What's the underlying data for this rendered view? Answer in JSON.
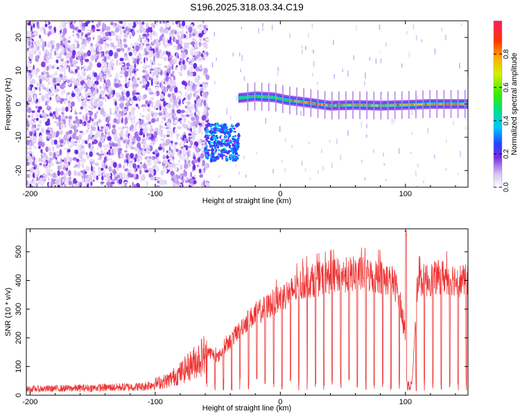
{
  "title": "S196.2025.318.03.34.C19",
  "chart_data": [
    {
      "type": "heatmap",
      "xlabel": "Height of straight line (km)",
      "ylabel": "Frequency (Hz)",
      "xlim": [
        -203,
        150
      ],
      "ylim": [
        -25,
        25
      ],
      "xticks": [
        -200,
        -100,
        0,
        100
      ],
      "yticks": [
        -20,
        -10,
        0,
        10,
        20
      ],
      "colorbar": {
        "label": "Normalized spectral amplitude",
        "range": [
          0,
          1
        ],
        "ticks": [
          0.0,
          0.2,
          0.4,
          0.6,
          0.8
        ]
      },
      "features": [
        {
          "name": "broadband noise",
          "x_range": [
            -203,
            -58
          ],
          "freq_range": [
            -25,
            25
          ],
          "amplitude": 0.15
        },
        {
          "name": "low-frequency burst",
          "x_range": [
            -60,
            -33
          ],
          "freq_range": [
            -17,
            -6
          ],
          "amplitude": 0.35
        },
        {
          "name": "signal trace",
          "points": [
            [
              -33,
              1.8
            ],
            [
              -20,
              2.3
            ],
            [
              -5,
              2.0
            ],
            [
              5,
              1.2
            ],
            [
              20,
              0.5
            ],
            [
              40,
              -0.5
            ],
            [
              60,
              -0.3
            ],
            [
              80,
              -0.5
            ],
            [
              100,
              -0.3
            ],
            [
              120,
              0.0
            ],
            [
              150,
              0.0
            ]
          ],
          "amplitude_range": [
            0.4,
            1.0
          ]
        }
      ]
    },
    {
      "type": "line",
      "xlabel": "Height of straight line (km)",
      "ylabel": "SNR (10 * v/v)",
      "xlim": [
        -203,
        150
      ],
      "ylim": [
        0,
        580
      ],
      "xticks": [
        -200,
        -100,
        0,
        100
      ],
      "yticks": [
        0,
        100,
        200,
        300,
        400,
        500
      ],
      "series": [
        {
          "name": "SNR",
          "color": "#ee3333",
          "envelope": {
            "x": [
              -203,
              -150,
              -110,
              -90,
              -80,
              -70,
              -60,
              -50,
              -40,
              -30,
              -20,
              -10,
              0,
              10,
              20,
              30,
              40,
              60,
              80,
              90,
              95,
              100,
              105,
              110,
              130,
              150
            ],
            "y": [
              25,
              30,
              35,
              60,
              90,
              130,
              170,
              140,
              200,
              260,
              300,
              330,
              360,
              390,
              420,
              430,
              440,
              450,
              440,
              420,
              380,
              200,
              30,
              420,
              440,
              420
            ]
          }
        }
      ]
    }
  ]
}
